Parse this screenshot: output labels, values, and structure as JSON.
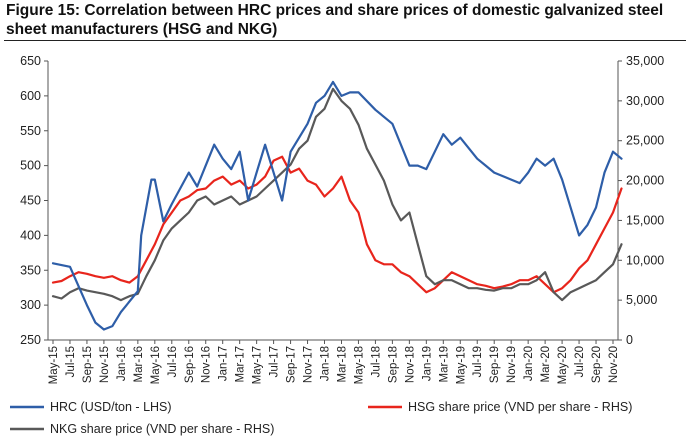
{
  "figure": {
    "title": "Figure 15: Correlation between HRC prices and share prices of domestic galvanized steel sheet manufacturers (HSG and NKG)"
  },
  "chart_data": {
    "type": "line",
    "x_labels": [
      "May-15",
      "Jul-15",
      "Sep-15",
      "Nov-15",
      "Jan-16",
      "Mar-16",
      "May-16",
      "Jul-16",
      "Sep-16",
      "Nov-16",
      "Jan-17",
      "Mar-17",
      "May-17",
      "Jul-17",
      "Sep-17",
      "Nov-17",
      "Jan-18",
      "Mar-18",
      "May-18",
      "Jul-18",
      "Sep-18",
      "Nov-18",
      "Jan-19",
      "Mar-19",
      "May-19",
      "Jul-19",
      "Sep-19",
      "Nov-19",
      "Jan-20",
      "Mar-20",
      "May-20",
      "Jul-20",
      "Sep-20",
      "Nov-20"
    ],
    "y_left": {
      "min": 250,
      "max": 650,
      "ticks": [
        "250",
        "300",
        "350",
        "400",
        "450",
        "500",
        "550",
        "600",
        "650"
      ]
    },
    "y_right": {
      "min": 0,
      "max": 35000,
      "ticks": [
        "0",
        "5,000",
        "10,000",
        "15,000",
        "20,000",
        "25,000",
        "30,000",
        "35,000"
      ]
    },
    "grid": false,
    "legend_position": "bottom",
    "series": [
      {
        "name": "HRC (USD/ton - LHS)",
        "axis": "left",
        "color": "#2e5ea8",
        "x": [
          0,
          1,
          2,
          2.5,
          3,
          3.5,
          4,
          5,
          5.2,
          5.8,
          6,
          6.5,
          7,
          8,
          8.5,
          9,
          9.5,
          10,
          10.5,
          11,
          11.5,
          12,
          12.5,
          13,
          13.5,
          14,
          14.5,
          15,
          15.5,
          16,
          16.5,
          17,
          17.5,
          18,
          19,
          19.5,
          20,
          21,
          21.5,
          22,
          22.5,
          23,
          23.5,
          24,
          25,
          25.5,
          26,
          27,
          27.5,
          28,
          28.5,
          29,
          29.5,
          30,
          31,
          31.5,
          32,
          32.5,
          33,
          33.5
        ],
        "values": [
          360,
          355,
          300,
          275,
          265,
          270,
          290,
          320,
          400,
          480,
          480,
          420,
          445,
          490,
          470,
          500,
          530,
          510,
          495,
          520,
          450,
          490,
          530,
          490,
          450,
          520,
          540,
          560,
          590,
          600,
          620,
          600,
          605,
          605,
          580,
          570,
          560,
          500,
          500,
          495,
          520,
          545,
          530,
          540,
          510,
          500,
          490,
          480,
          475,
          490,
          510,
          500,
          510,
          480,
          400,
          415,
          440,
          490,
          520,
          510
        ]
      },
      {
        "name": "HSG share price (VND per share - RHS)",
        "axis": "right",
        "color": "#e8251c",
        "x": [
          0,
          0.5,
          1,
          1.5,
          2,
          2.5,
          3,
          3.5,
          4,
          4.5,
          5,
          5.5,
          6,
          6.5,
          7,
          7.5,
          8,
          8.5,
          9,
          9.5,
          10,
          10.5,
          11,
          11.5,
          12,
          12.5,
          13,
          13.5,
          14,
          14.5,
          15,
          15.5,
          16,
          16.5,
          17,
          17.5,
          18,
          18.5,
          19,
          19.5,
          20,
          20.5,
          21,
          21.5,
          22,
          22.5,
          23,
          23.5,
          24,
          24.5,
          25,
          25.5,
          26,
          26.5,
          27,
          27.5,
          28,
          28.5,
          29,
          29.5,
          30,
          30.5,
          31,
          31.5,
          32,
          32.5,
          33,
          33.5
        ],
        "values": [
          7200,
          7400,
          8000,
          8500,
          8300,
          8000,
          7800,
          8000,
          7500,
          7200,
          8000,
          10000,
          12000,
          14500,
          16000,
          17500,
          18000,
          18800,
          19000,
          20000,
          20500,
          19500,
          20000,
          19000,
          19500,
          20500,
          22500,
          23000,
          21000,
          21500,
          20000,
          19500,
          18000,
          19000,
          20500,
          17500,
          16000,
          12000,
          10000,
          9500,
          9500,
          8500,
          8000,
          7000,
          6000,
          6500,
          7500,
          8500,
          8000,
          7500,
          7000,
          6800,
          6500,
          6700,
          7000,
          7500,
          7500,
          8000,
          7000,
          6000,
          6500,
          7500,
          9000,
          10000,
          12000,
          14000,
          16000,
          19000
        ]
      },
      {
        "name": "NKG share price (VND per share - RHS)",
        "axis": "right",
        "color": "#595959",
        "x": [
          0,
          0.5,
          1,
          1.5,
          2,
          2.5,
          3,
          3.5,
          4,
          4.5,
          5,
          5.5,
          6,
          6.5,
          7,
          7.5,
          8,
          8.5,
          9,
          9.5,
          10,
          10.5,
          11,
          11.5,
          12,
          12.5,
          13,
          13.5,
          14,
          14.5,
          15,
          15.5,
          16,
          16.5,
          17,
          17.5,
          18,
          18.5,
          19,
          19.5,
          20,
          20.5,
          21,
          21.5,
          22,
          22.5,
          23,
          23.5,
          24,
          24.5,
          25,
          25.5,
          26,
          26.5,
          27,
          27.5,
          28,
          28.5,
          29,
          29.5,
          30,
          30.5,
          31,
          31.5,
          32,
          32.5,
          33,
          33.5
        ],
        "values": [
          5500,
          5200,
          6000,
          6500,
          6200,
          6000,
          5800,
          5500,
          5000,
          5500,
          5800,
          8000,
          10000,
          12500,
          14000,
          15000,
          16000,
          17500,
          18000,
          17000,
          17500,
          18000,
          17000,
          17500,
          18000,
          19000,
          20000,
          21000,
          22000,
          24000,
          25000,
          28000,
          29000,
          31500,
          30000,
          29000,
          27000,
          24000,
          22000,
          20000,
          17000,
          15000,
          16000,
          12000,
          8000,
          7000,
          7500,
          7500,
          7000,
          6500,
          6500,
          6300,
          6200,
          6500,
          6500,
          7000,
          7000,
          7500,
          8500,
          6000,
          5000,
          6000,
          6500,
          7000,
          7500,
          8500,
          9500,
          12000
        ]
      }
    ]
  }
}
